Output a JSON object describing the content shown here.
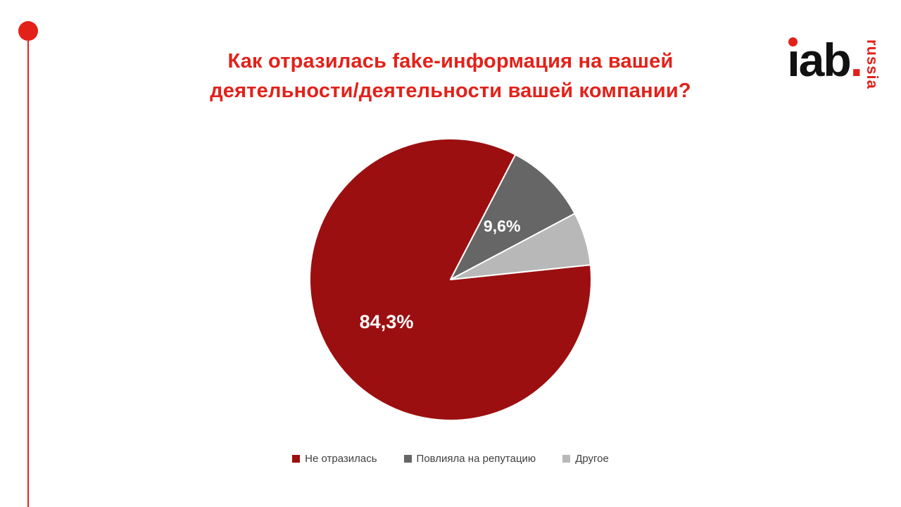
{
  "slide": {
    "title_line1": "Как отразилась fake-информация на вашей",
    "title_line2": "деятельности/деятельности вашей компании?",
    "accent_color": "#e32119"
  },
  "logo": {
    "text": "ıab",
    "period": ".",
    "sub": "russia"
  },
  "chart_data": {
    "type": "pie",
    "title": "Как отразилась fake-информация на вашей деятельности/деятельности вашей компании?",
    "legend_position": "bottom",
    "start_angle": 84,
    "slices": [
      {
        "id": "ne-otrazilas",
        "name": "Не отразилась",
        "value": 84.3,
        "label": "84,3%",
        "color": "#9c0f10",
        "label_r": 0.55,
        "label_size": 27
      },
      {
        "id": "povliyala",
        "name": "Повлияла на репутацию",
        "value": 9.6,
        "label": "9,6%",
        "color": "#666666",
        "label_r": 0.52,
        "label_size": 23
      },
      {
        "id": "drugoe",
        "name": "Другое",
        "value": 6.1,
        "label": "",
        "color": "#b8b8b8",
        "label_r": 0.8,
        "label_size": 0
      }
    ]
  }
}
